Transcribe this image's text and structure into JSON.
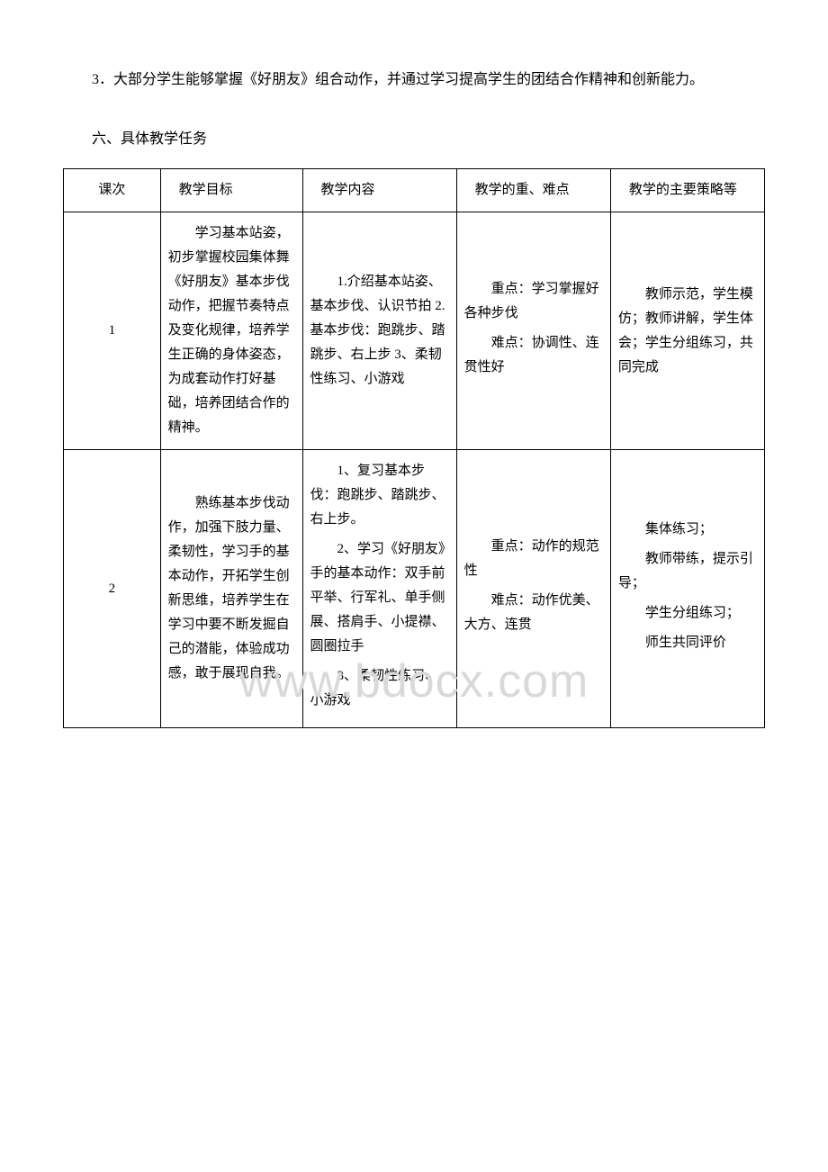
{
  "intro_text": "3．大部分学生能够掌握《好朋友》组合动作，并通过学习提高学生的团结合作精神和创新能力。",
  "section_title": "六、具体教学任务",
  "watermark_text": "www.bdocx.com",
  "table": {
    "headers": {
      "col1": "课次",
      "col2": "教学目标",
      "col3": "教学内容",
      "col4": "教学的重、难点",
      "col5": "教学的主要策略等"
    },
    "rows": [
      {
        "num": "1",
        "goal": "学习基本站姿，初步掌握校园集体舞《好朋友》基本步伐动作，把握节奏特点及变化规律，培养学生正确的身体姿态，为成套动作打好基础，培养团结合作的精神。",
        "content": "1.介绍基本站姿、基本步伐、认识节拍 2.基本步伐：跑跳步、踏跳步、右上步 3、柔韧性练习、小游戏",
        "points_a": "重点：学习掌握好各种步伐",
        "points_b": "难点：协调性、连贯性好",
        "strategy": "教师示范，学生模仿；教师讲解，学生体会；学生分组练习，共同完成"
      },
      {
        "num": "2",
        "goal": "熟练基本步伐动作，加强下肢力量、柔韧性，学习手的基本动作，开拓学生创新思维，培养学生在学习中要不断发掘自己的潜能，体验成功感，敢于展现自我。",
        "content_a": "1、复习基本步伐：跑跳步、踏跳步、右上步。",
        "content_b": "2、学习《好朋友》手的基本动作：双手前平举、行军礼、单手侧展、搭肩手、小提襟、圆圈拉手",
        "content_c": "3、柔韧性练习、小游戏",
        "points_a": "重点：动作的规范性",
        "points_b": "难点：动作优美、大方、连贯",
        "strategy_a": "集体练习；",
        "strategy_b": "教师带练，提示引导；",
        "strategy_c": "学生分组练习；",
        "strategy_d": "师生共同评价"
      }
    ]
  }
}
